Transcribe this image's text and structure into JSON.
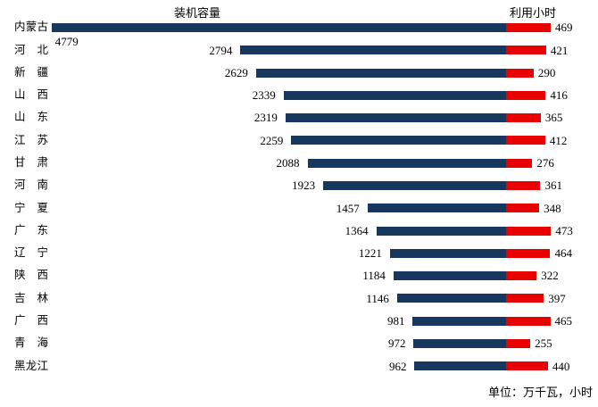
{
  "chart_data": {
    "type": "bar",
    "orientation": "horizontal-diverging",
    "title": "",
    "unit_note": "单位：万千瓦，小时",
    "legend_position": "column-headers-top",
    "grid": false,
    "axes_visible": false,
    "categories": [
      "内蒙古",
      "河北",
      "新疆",
      "山西",
      "山东",
      "江苏",
      "甘肃",
      "河南",
      "宁夏",
      "广东",
      "辽宁",
      "陕西",
      "吉林",
      "广西",
      "青海",
      "黑龙江"
    ],
    "series": [
      {
        "name": "装机容量",
        "side": "left",
        "color": "#17375e",
        "values": [
          4779,
          2794,
          2629,
          2339,
          2319,
          2259,
          2088,
          1923,
          1457,
          1364,
          1221,
          1184,
          1146,
          981,
          972,
          962
        ]
      },
      {
        "name": "利用小时",
        "side": "right",
        "color": "#e90000",
        "values": [
          469,
          421,
          290,
          416,
          365,
          412,
          276,
          361,
          348,
          473,
          464,
          322,
          397,
          465,
          255,
          440
        ]
      }
    ],
    "value_labels_visible": true,
    "xlim_left_series": [
      0,
      4800
    ],
    "xlim_right_series": [
      0,
      500
    ]
  }
}
